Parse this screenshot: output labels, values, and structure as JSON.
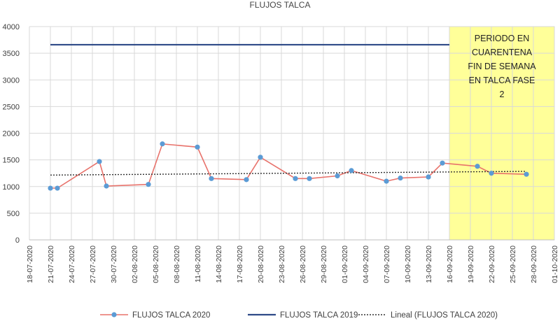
{
  "chart_data": {
    "type": "line",
    "title": "FLUJOS TALCA",
    "ylim": [
      0,
      4000
    ],
    "yticks": [
      0,
      500,
      1000,
      1500,
      2000,
      2500,
      3000,
      3500,
      4000
    ],
    "x_tick_labels": [
      "18-07-2020",
      "21-07-2020",
      "24-07-2020",
      "27-07-2020",
      "30-07-2020",
      "02-08-2020",
      "05-08-2020",
      "08-08-2020",
      "11-08-2020",
      "14-08-2020",
      "17-08-2020",
      "20-08-2020",
      "23-08-2020",
      "26-08-2020",
      "29-08-2020",
      "01-09-2020",
      "04-09-2020",
      "07-09-2020",
      "10-09-2020",
      "13-09-2020",
      "16-09-2020",
      "19-09-2020",
      "22-09-2020",
      "25-09-2020",
      "28-09-2020",
      "01-10-2020"
    ],
    "grid": true,
    "legend_position": "bottom",
    "series": [
      {
        "name": "FLUJOS TALCA 2020",
        "color": "#e8726b",
        "marker_color": "#5b9bd5",
        "points": [
          {
            "x": "21-07-2020",
            "y": 970
          },
          {
            "x": "22-07-2020",
            "y": 970
          },
          {
            "x": "28-07-2020",
            "y": 1470
          },
          {
            "x": "29-07-2020",
            "y": 1010
          },
          {
            "x": "04-08-2020",
            "y": 1040
          },
          {
            "x": "06-08-2020",
            "y": 1800
          },
          {
            "x": "11-08-2020",
            "y": 1740
          },
          {
            "x": "13-08-2020",
            "y": 1150
          },
          {
            "x": "18-08-2020",
            "y": 1130
          },
          {
            "x": "20-08-2020",
            "y": 1550
          },
          {
            "x": "25-08-2020",
            "y": 1150
          },
          {
            "x": "27-08-2020",
            "y": 1150
          },
          {
            "x": "31-08-2020",
            "y": 1200
          },
          {
            "x": "02-09-2020",
            "y": 1300
          },
          {
            "x": "07-09-2020",
            "y": 1100
          },
          {
            "x": "09-09-2020",
            "y": 1160
          },
          {
            "x": "13-09-2020",
            "y": 1180
          },
          {
            "x": "15-09-2020",
            "y": 1440
          },
          {
            "x": "20-09-2020",
            "y": 1380
          },
          {
            "x": "22-09-2020",
            "y": 1250
          },
          {
            "x": "27-09-2020",
            "y": 1230
          }
        ]
      },
      {
        "name": "FLUJOS TALCA 2019",
        "color": "#2e4a87",
        "y_constant": 3660
      },
      {
        "name": "Lineal (FLUJOS TALCA 2020)",
        "color": "#333333",
        "style": "dotted",
        "trend_start": {
          "x": "21-07-2020",
          "y": 1215
        },
        "trend_end": {
          "x": "27-09-2020",
          "y": 1285
        }
      }
    ],
    "annotation": {
      "text_lines": [
        "PERIODO  EN",
        "CUARENTENA",
        "FIN DE SEMANA",
        "EN TALCA FASE",
        "2"
      ],
      "highlight_color": "#ffff99",
      "highlight_border": "#d9d9d9",
      "highlight_start": "16-09-2020",
      "highlight_end": "01-10-2020"
    }
  }
}
